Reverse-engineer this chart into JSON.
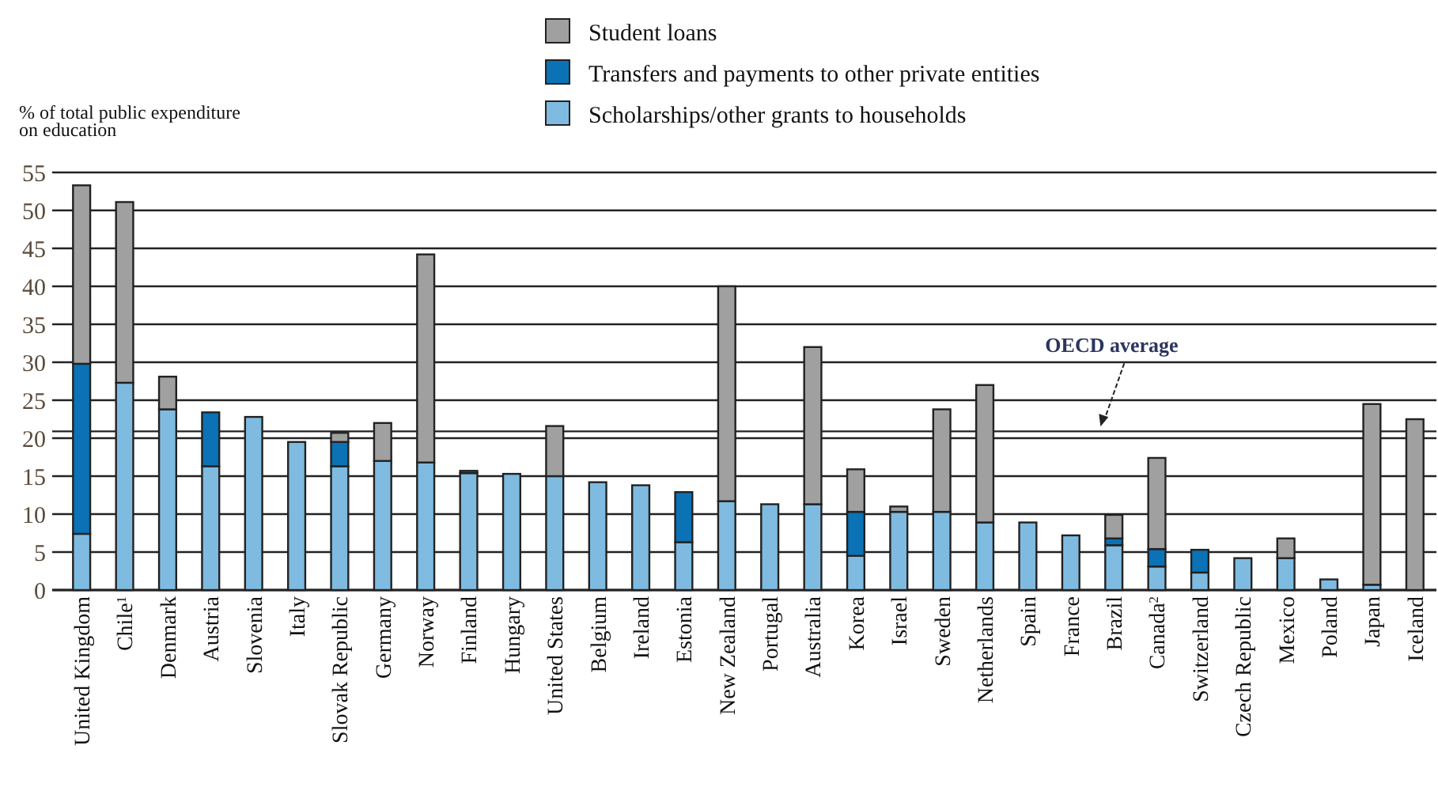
{
  "chart_data": {
    "type": "bar",
    "stacked": true,
    "ylabel": "% of total public expenditure on education",
    "categories": [
      "United Kingdom",
      "Chile$^{1}$",
      "Denmark",
      "Austria",
      "Slovenia",
      "Italy",
      "Slovak Republic",
      "Germany",
      "Norway",
      "Finland",
      "Hungary",
      "United States",
      "Belgium",
      "Ireland",
      "Estonia",
      "New Zealand",
      "Portugal",
      "Australia",
      "Korea",
      "Israel",
      "Sweden",
      "Netherlands",
      "Spain",
      "France",
      "Brazil",
      "Canada$^{2}$",
      "Switzerland",
      "Czech Republic",
      "Mexico",
      "Poland",
      "Japan",
      "Iceland"
    ],
    "series": [
      {
        "name": "Scholarships/other grants to households",
        "color": "#7fbbe0",
        "values": [
          7.4,
          27.3,
          23.8,
          16.3,
          22.8,
          19.5,
          16.3,
          17.0,
          16.8,
          15.4,
          15.3,
          15.0,
          14.2,
          13.8,
          6.3,
          11.7,
          11.3,
          11.3,
          4.5,
          10.3,
          10.3,
          8.9,
          8.9,
          7.2,
          5.9,
          3.1,
          2.3,
          4.2,
          4.2,
          1.4,
          0.7,
          0
        ]
      },
      {
        "name": "Transfers and payments to other private entities",
        "color": "#0a72b5",
        "values": [
          22.4,
          0,
          0,
          7.1,
          0,
          0,
          3.2,
          0,
          0,
          0.3,
          0,
          0,
          0,
          0,
          6.6,
          0,
          0,
          0,
          5.8,
          0,
          0,
          0,
          0,
          0,
          0.9,
          2.3,
          3.0,
          0,
          0,
          0,
          0,
          0
        ]
      },
      {
        "name": "Student loans",
        "color": "#a0a0a0",
        "values": [
          23.5,
          23.8,
          4.3,
          0,
          0,
          0,
          1.2,
          5.0,
          27.4,
          0,
          0,
          6.6,
          0,
          0,
          0,
          28.3,
          0,
          20.7,
          5.6,
          0.7,
          13.5,
          18.1,
          0,
          0,
          3.1,
          12.0,
          0,
          0,
          2.6,
          0,
          23.8,
          22.5
        ]
      }
    ],
    "ylim": [
      0,
      55
    ],
    "yticks": [
      0,
      5,
      10,
      15,
      20,
      25,
      30,
      35,
      40,
      45,
      50,
      55
    ],
    "grid": "y",
    "legend": "top",
    "ref_lines": [
      {
        "axis": "y",
        "value": 20.9,
        "label": "OECD average"
      }
    ]
  }
}
